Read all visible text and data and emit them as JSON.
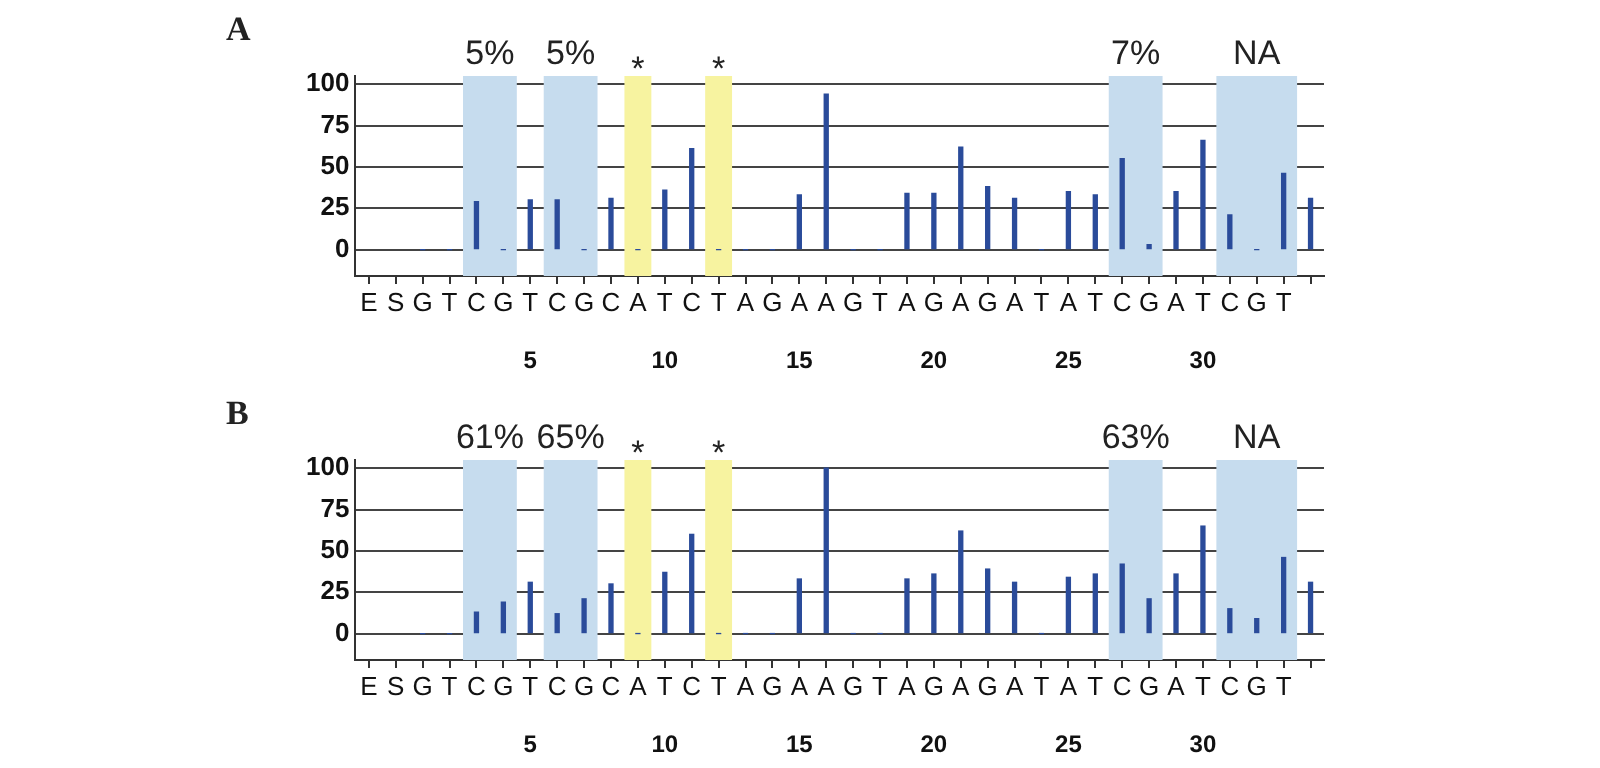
{
  "chart_data": [
    {
      "type": "bar",
      "title": "A",
      "color": "#2a4b9a",
      "categories": [
        "E",
        "S",
        "G",
        "T",
        "C",
        "G",
        "T",
        "C",
        "G",
        "C",
        "A",
        "T",
        "C",
        "T",
        "A",
        "G",
        "A",
        "A",
        "G",
        "T",
        "A",
        "G",
        "A",
        "G",
        "A",
        "T",
        "A",
        "T",
        "C",
        "G",
        "A",
        "T",
        "C",
        "G",
        "T",
        null
      ],
      "values": [
        null,
        null,
        0,
        0,
        29,
        0,
        30,
        30,
        0,
        31,
        0,
        36,
        61,
        0,
        0,
        0,
        33,
        94,
        0,
        0,
        34,
        34,
        62,
        38,
        31,
        0,
        35,
        33,
        55,
        3,
        35,
        66,
        21,
        0,
        46,
        31
      ],
      "x2lim": [
        -1.5,
        34.5
      ],
      "x2ticks": [
        5,
        10,
        15,
        20,
        25,
        30
      ],
      "ylim": [
        -16,
        105
      ],
      "yticks": [
        0,
        25,
        50,
        75,
        100
      ],
      "grid": "y",
      "legend": false,
      "bands": [
        {
          "axis": "x2",
          "from": 2.5,
          "to": 4.5,
          "label": "5%",
          "color": "#c6dcee"
        },
        {
          "axis": "x2",
          "from": 5.5,
          "to": 7.5,
          "label": "5%",
          "color": "#c6dcee"
        },
        {
          "axis": "x2",
          "from": 8.5,
          "to": 9.5,
          "label": "*",
          "color": "#f7f3a0"
        },
        {
          "axis": "x2",
          "from": 11.5,
          "to": 12.5,
          "label": "*",
          "color": "#f7f3a0"
        },
        {
          "axis": "x2",
          "from": 26.5,
          "to": 28.5,
          "label": "7%",
          "color": "#c6dcee"
        },
        {
          "axis": "x2",
          "from": 30.5,
          "to": 33.5,
          "label": "NA",
          "color": "#c6dcee"
        }
      ]
    },
    {
      "type": "bar",
      "title": "B",
      "color": "#2a4b9a",
      "categories": [
        "E",
        "S",
        "G",
        "T",
        "C",
        "G",
        "T",
        "C",
        "G",
        "C",
        "A",
        "T",
        "C",
        "T",
        "A",
        "G",
        "A",
        "A",
        "G",
        "T",
        "A",
        "G",
        "A",
        "G",
        "A",
        "T",
        "A",
        "T",
        "C",
        "G",
        "A",
        "T",
        "C",
        "G",
        "T",
        null
      ],
      "values": [
        null,
        null,
        0,
        0,
        13,
        19,
        31,
        12,
        21,
        30,
        0,
        37,
        60,
        0,
        0,
        0,
        33,
        100,
        0,
        0,
        33,
        36,
        62,
        39,
        31,
        0,
        34,
        36,
        42,
        21,
        36,
        65,
        15,
        9,
        46,
        31
      ],
      "x2lim": [
        -1.5,
        34.5
      ],
      "x2ticks": [
        5,
        10,
        15,
        20,
        25,
        30
      ],
      "ylim": [
        -16,
        105
      ],
      "yticks": [
        0,
        25,
        50,
        75,
        100
      ],
      "grid": "y",
      "legend": false,
      "bands": [
        {
          "axis": "x2",
          "from": 2.5,
          "to": 4.5,
          "label": "61%",
          "color": "#c6dcee"
        },
        {
          "axis": "x2",
          "from": 5.5,
          "to": 7.5,
          "label": "65%",
          "color": "#c6dcee"
        },
        {
          "axis": "x2",
          "from": 8.5,
          "to": 9.5,
          "label": "*",
          "color": "#f7f3a0"
        },
        {
          "axis": "x2",
          "from": 11.5,
          "to": 12.5,
          "label": "*",
          "color": "#f7f3a0"
        },
        {
          "axis": "x2",
          "from": 26.5,
          "to": 28.5,
          "label": "63%",
          "color": "#c6dcee"
        },
        {
          "axis": "x2",
          "from": 30.5,
          "to": 33.5,
          "label": "NA",
          "color": "#c6dcee"
        }
      ]
    }
  ]
}
